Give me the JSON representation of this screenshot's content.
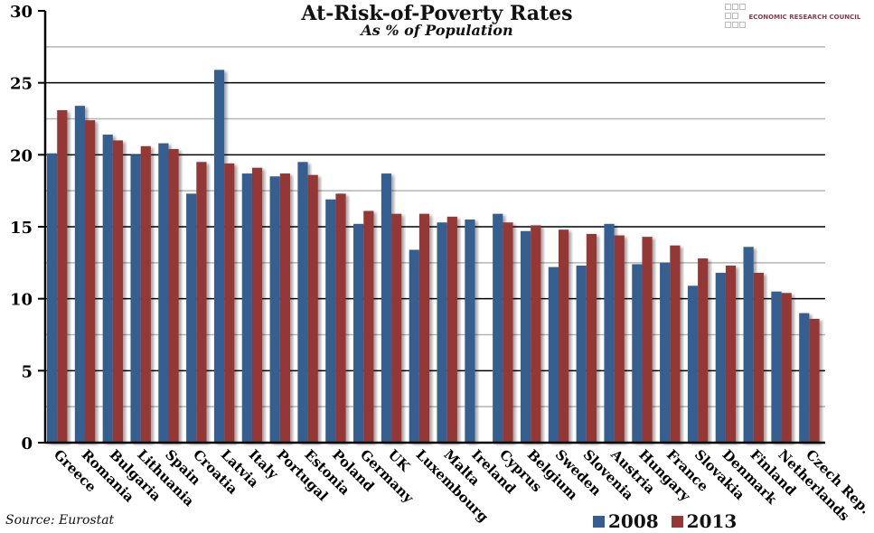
{
  "chart_data": {
    "type": "bar",
    "title": "At-Risk-of-Poverty Rates",
    "subtitle": "As % of Population",
    "source": "Source: Eurostat",
    "logo_text": "ECONOMIC RESEARCH COUNCIL",
    "xlabel": "",
    "ylabel": "",
    "ylim": [
      0,
      30
    ],
    "yticks": [
      0,
      5,
      10,
      15,
      20,
      25,
      30
    ],
    "grid": true,
    "legend_position": "bottom-right",
    "categories": [
      "Greece",
      "Romania",
      "Bulgaria",
      "Lithuania",
      "Spain",
      "Croatia",
      "Latvia",
      "Italy",
      "Portugal",
      "Estonia",
      "Poland",
      "Germany",
      "UK",
      "Luxembourg",
      "Malta",
      "Ireland",
      "Cyprus",
      "Belgium",
      "Sweden",
      "Slovenia",
      "Austria",
      "Hungary",
      "France",
      "Slovakia",
      "Denmark",
      "Finland",
      "Netherlands",
      "Czech Rep."
    ],
    "series": [
      {
        "name": "2008",
        "color": "#355f91",
        "values": [
          20.1,
          23.4,
          21.4,
          20.0,
          20.8,
          17.3,
          25.9,
          18.7,
          18.5,
          19.5,
          16.9,
          15.2,
          18.7,
          13.4,
          15.3,
          15.5,
          15.9,
          14.7,
          12.2,
          12.3,
          15.2,
          12.4,
          12.5,
          10.9,
          11.8,
          13.6,
          10.5,
          9.0
        ]
      },
      {
        "name": "2013",
        "color": "#953735",
        "values": [
          23.1,
          22.4,
          21.0,
          20.6,
          20.4,
          19.5,
          19.4,
          19.1,
          18.7,
          18.6,
          17.3,
          16.1,
          15.9,
          15.9,
          15.7,
          null,
          15.3,
          15.1,
          14.8,
          14.5,
          14.4,
          14.3,
          13.7,
          12.8,
          12.3,
          11.8,
          10.4,
          8.6
        ]
      }
    ]
  }
}
